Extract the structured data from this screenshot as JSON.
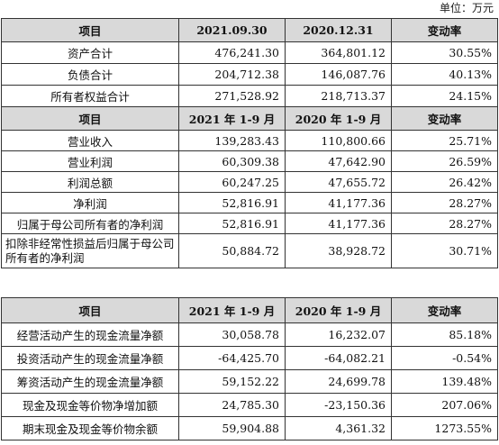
{
  "unit_label": "单位：万元",
  "table_a": {
    "header1": [
      "项目",
      "2021.09.30",
      "2020.12.31",
      "变动率"
    ],
    "balance_rows": [
      {
        "item": "资产合计",
        "v1": "476,241.30",
        "v2": "364,801.12",
        "rate": "30.55%"
      },
      {
        "item": "负债合计",
        "v1": "204,712.38",
        "v2": "146,087.76",
        "rate": "40.13%"
      },
      {
        "item": "所有者权益合计",
        "v1": "271,528.92",
        "v2": "218,713.37",
        "rate": "24.15%"
      }
    ],
    "header2": [
      "项目",
      "2021 年 1-9 月",
      "2020 年 1-9 月",
      "变动率"
    ],
    "income_rows": [
      {
        "item": "营业收入",
        "v1": "139,283.43",
        "v2": "110,800.66",
        "rate": "25.71%"
      },
      {
        "item": "营业利润",
        "v1": "60,309.38",
        "v2": "47,642.90",
        "rate": "26.59%"
      },
      {
        "item": "利润总额",
        "v1": "60,247.25",
        "v2": "47,655.72",
        "rate": "26.42%"
      },
      {
        "item": "净利润",
        "v1": "52,816.91",
        "v2": "41,177.36",
        "rate": "28.27%"
      },
      {
        "item": "归属于母公司所有者的净利润",
        "v1": "52,816.91",
        "v2": "41,177.36",
        "rate": "28.27%"
      },
      {
        "item": "扣除非经常性损益后归属于母公司所有者的净利润",
        "v1": "50,884.72",
        "v2": "38,928.72",
        "rate": "30.71%"
      }
    ]
  },
  "table_b": {
    "header": [
      "项目",
      "2021 年 1-9 月",
      "2020 年 1-9 月",
      "变动率"
    ],
    "rows": [
      {
        "item": "经营活动产生的现金流量净额",
        "v1": "30,058.78",
        "v2": "16,232.07",
        "rate": "85.18%"
      },
      {
        "item": "投资活动产生的现金流量净额",
        "v1": "-64,425.70",
        "v2": "-64,082.21",
        "rate": "-0.54%"
      },
      {
        "item": "筹资活动产生的现金流量净额",
        "v1": "59,152.22",
        "v2": "24,699.78",
        "rate": "139.48%"
      },
      {
        "item": "现金及现金等价物净增加额",
        "v1": "24,785.30",
        "v2": "-23,150.36",
        "rate": "207.06%"
      },
      {
        "item": "期末现金及现金等价物余额",
        "v1": "59,904.88",
        "v2": "4,361.32",
        "rate": "1273.55%"
      }
    ]
  }
}
